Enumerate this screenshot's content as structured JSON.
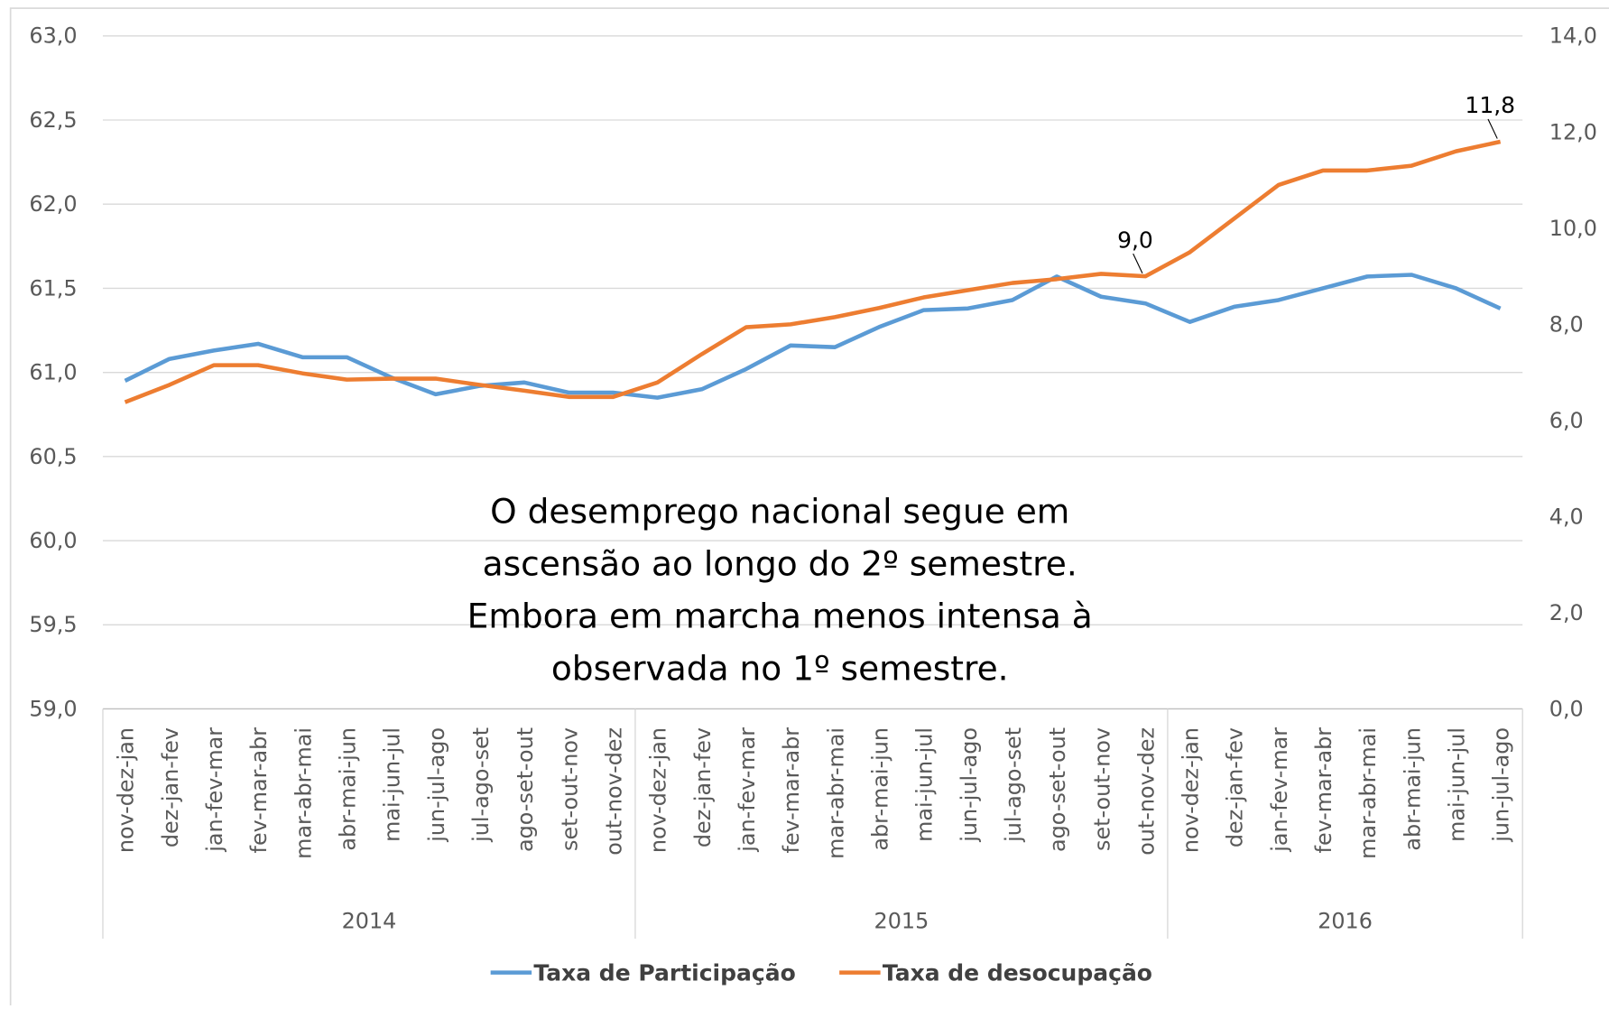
{
  "chart_data": {
    "type": "line",
    "categories": [
      "nov-dez-jan",
      "dez-jan-fev",
      "jan-fev-mar",
      "fev-mar-abr",
      "mar-abr-mai",
      "abr-mai-jun",
      "mai-jun-jul",
      "jun-jul-ago",
      "jul-ago-set",
      "ago-set-out",
      "set-out-nov",
      "out-nov-dez",
      "nov-dez-jan",
      "dez-jan-fev",
      "jan-fev-mar",
      "fev-mar-abr",
      "mar-abr-mai",
      "abr-mai-jun",
      "mai-jun-jul",
      "jun-jul-ago",
      "jul-ago-set",
      "ago-set-out",
      "set-out-nov",
      "out-nov-dez",
      "nov-dez-jan",
      "dez-jan-fev",
      "jan-fev-mar",
      "fev-mar-abr",
      "mar-abr-mai",
      "abr-mai-jun",
      "mai-jun-jul",
      "jun-jul-ago"
    ],
    "groups": [
      {
        "label": "2014",
        "count": 12
      },
      {
        "label": "2015",
        "count": 12
      },
      {
        "label": "2016",
        "count": 8
      }
    ],
    "series": [
      {
        "name": "Taxa de Participação",
        "color": "#5b9bd5",
        "values": [
          60.95,
          61.08,
          61.13,
          61.17,
          61.09,
          61.09,
          60.97,
          60.87,
          60.92,
          60.94,
          60.88,
          60.88,
          60.85,
          60.9,
          61.02,
          61.16,
          61.15,
          61.27,
          61.37,
          61.38,
          61.43,
          61.57,
          61.45,
          61.41,
          61.3,
          61.39,
          61.43,
          61.5,
          61.57,
          61.58,
          61.5,
          61.38
        ]
      },
      {
        "name": "Taxa de desocupação",
        "color": "#ed7d31",
        "axis": "y2",
        "values": [
          6.38,
          6.74,
          7.15,
          7.15,
          6.98,
          6.85,
          6.87,
          6.87,
          6.74,
          6.62,
          6.49,
          6.49,
          6.79,
          7.38,
          7.94,
          8.0,
          8.15,
          8.34,
          8.56,
          8.71,
          8.86,
          8.94,
          9.05,
          9.0,
          9.5,
          10.2,
          10.9,
          11.2,
          11.2,
          11.3,
          11.6,
          11.8
        ],
        "value_labels": [
          null,
          null,
          null,
          null,
          null,
          null,
          null,
          null,
          null,
          null,
          null,
          null,
          null,
          null,
          null,
          null,
          null,
          null,
          null,
          null,
          null,
          null,
          null,
          "9,0",
          null,
          null,
          null,
          null,
          null,
          null,
          null,
          "11,8"
        ]
      }
    ],
    "ylim": [
      59,
      63
    ],
    "yticks": [
      {
        "value": 59,
        "label": "59,0"
      },
      {
        "value": 59.5,
        "label": "59,5"
      },
      {
        "value": 60,
        "label": "60,0"
      },
      {
        "value": 60.5,
        "label": "60,5"
      },
      {
        "value": 61,
        "label": "61,0"
      },
      {
        "value": 61.5,
        "label": "61,5"
      },
      {
        "value": 62,
        "label": "62,0"
      },
      {
        "value": 62.5,
        "label": "62,5"
      },
      {
        "value": 63,
        "label": "63,0"
      }
    ],
    "y2lim": [
      0,
      14
    ],
    "y2ticks": [
      {
        "value": 0,
        "label": "0,0"
      },
      {
        "value": 2,
        "label": "2,0"
      },
      {
        "value": 4,
        "label": "4,0"
      },
      {
        "value": 6,
        "label": "6,0"
      },
      {
        "value": 8,
        "label": "8,0"
      },
      {
        "value": 10,
        "label": "10,0"
      },
      {
        "value": 12,
        "label": "12,0"
      },
      {
        "value": 14,
        "label": "14,0"
      }
    ],
    "grid": true,
    "legend": "bottom",
    "annotation": [
      "O desemprego nacional segue em",
      "ascensão ao longo do 2º semestre.",
      "Embora em marcha menos intensa à",
      "observada no 1º semestre."
    ]
  }
}
